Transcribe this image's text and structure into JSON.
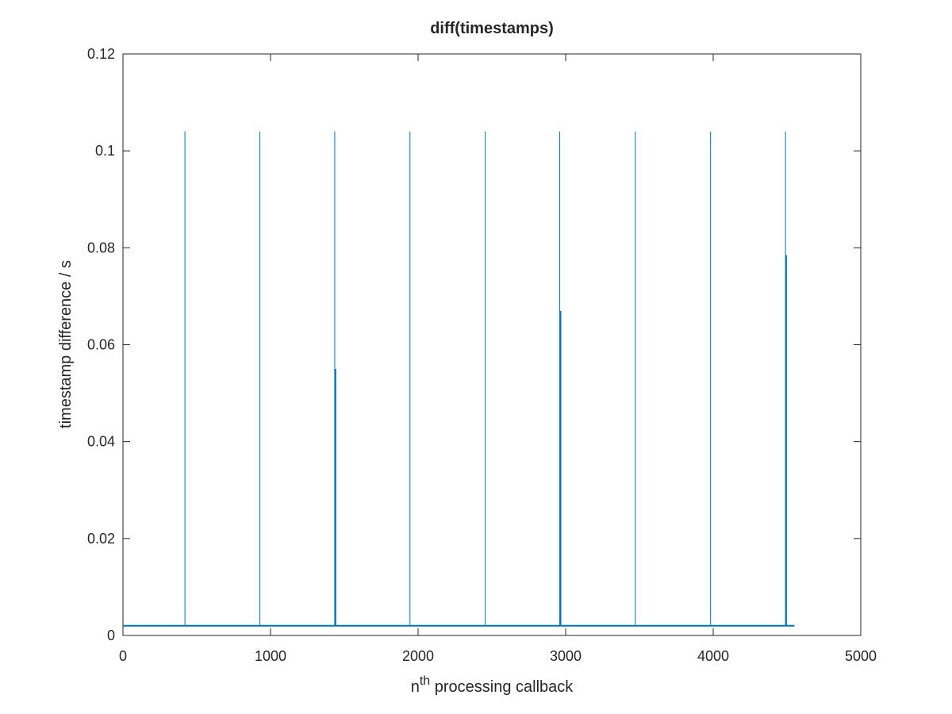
{
  "chart_data": {
    "type": "line",
    "title": "diff(timestamps)",
    "xlabel_base": "n",
    "xlabel_sup": "th",
    "xlabel_rest": " processing callback",
    "ylabel": "timestamp difference / s",
    "xlim": [
      0,
      5000
    ],
    "ylim": [
      0,
      0.12
    ],
    "xticks": [
      0,
      1000,
      2000,
      3000,
      4000,
      5000
    ],
    "xtick_labels": [
      "0",
      "1000",
      "2000",
      "3000",
      "4000",
      "5000"
    ],
    "yticks": [
      0,
      0.02,
      0.04,
      0.06,
      0.08,
      0.1,
      0.12
    ],
    "ytick_labels": [
      "0",
      "0.02",
      "0.04",
      "0.06",
      "0.08",
      "0.1",
      "0.12"
    ],
    "grid": false,
    "series_color": "#0072BD",
    "series": [
      {
        "baseline": 0.002,
        "x_end": 4550,
        "spikes": [
          {
            "x": 420,
            "y": 0.104,
            "heavy": false
          },
          {
            "x": 928,
            "y": 0.104,
            "heavy": false
          },
          {
            "x": 1435,
            "y": 0.104,
            "heavy": false
          },
          {
            "x": 1440,
            "y": 0.055,
            "heavy": true
          },
          {
            "x": 1945,
            "y": 0.104,
            "heavy": false
          },
          {
            "x": 2455,
            "y": 0.104,
            "heavy": false
          },
          {
            "x": 2960,
            "y": 0.104,
            "heavy": false
          },
          {
            "x": 2965,
            "y": 0.067,
            "heavy": true
          },
          {
            "x": 3472,
            "y": 0.104,
            "heavy": false
          },
          {
            "x": 3982,
            "y": 0.104,
            "heavy": false
          },
          {
            "x": 4490,
            "y": 0.104,
            "heavy": false
          },
          {
            "x": 4494,
            "y": 0.0785,
            "heavy": true
          }
        ]
      }
    ]
  }
}
